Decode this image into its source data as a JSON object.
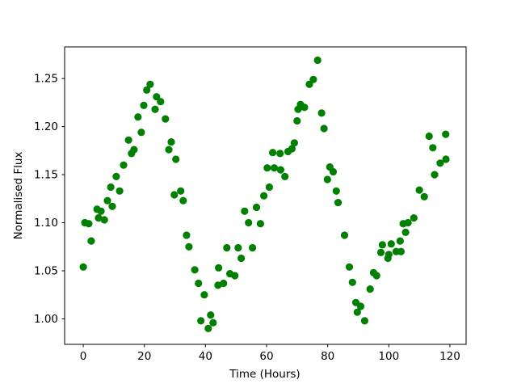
{
  "figure": {
    "background": "#ffffff",
    "frame_color": "#000000"
  },
  "chart_data": {
    "type": "scatter",
    "title": "",
    "xlabel": "Time (Hours)",
    "ylabel": "Normalised Flux",
    "legend": null,
    "grid": false,
    "marker": {
      "shape": "circle",
      "color": "#008000",
      "radius_px": 4.6
    },
    "xlim": [
      -6.1,
      125.3
    ],
    "ylim": [
      0.9735,
      1.2829
    ],
    "x_ticks": [
      {
        "value": 0,
        "label": "0"
      },
      {
        "value": 20,
        "label": "20"
      },
      {
        "value": 40,
        "label": "40"
      },
      {
        "value": 60,
        "label": "60"
      },
      {
        "value": 80,
        "label": "80"
      },
      {
        "value": 100,
        "label": "100"
      },
      {
        "value": 120,
        "label": "120"
      }
    ],
    "y_ticks": [
      {
        "value": 1.0,
        "label": "1.00"
      },
      {
        "value": 1.05,
        "label": "1.05"
      },
      {
        "value": 1.1,
        "label": "1.10"
      },
      {
        "value": 1.15,
        "label": "1.15"
      },
      {
        "value": 1.2,
        "label": "1.20"
      },
      {
        "value": 1.25,
        "label": "1.25"
      }
    ],
    "points": [
      [
        0.0,
        1.054
      ],
      [
        0.5,
        1.1
      ],
      [
        1.8,
        1.099
      ],
      [
        2.6,
        1.081
      ],
      [
        4.5,
        1.114
      ],
      [
        5.0,
        1.105
      ],
      [
        5.8,
        1.112
      ],
      [
        6.9,
        1.103
      ],
      [
        7.9,
        1.123
      ],
      [
        9.0,
        1.137
      ],
      [
        9.5,
        1.117
      ],
      [
        10.8,
        1.148
      ],
      [
        11.9,
        1.133
      ],
      [
        13.2,
        1.16
      ],
      [
        14.8,
        1.186
      ],
      [
        15.8,
        1.172
      ],
      [
        16.6,
        1.176
      ],
      [
        17.9,
        1.21
      ],
      [
        19.0,
        1.194
      ],
      [
        19.8,
        1.222
      ],
      [
        20.8,
        1.238
      ],
      [
        21.9,
        1.244
      ],
      [
        23.5,
        1.218
      ],
      [
        24.0,
        1.231
      ],
      [
        25.3,
        1.226
      ],
      [
        26.9,
        1.208
      ],
      [
        28.0,
        1.176
      ],
      [
        28.8,
        1.184
      ],
      [
        29.8,
        1.129
      ],
      [
        30.3,
        1.166
      ],
      [
        31.9,
        1.133
      ],
      [
        32.7,
        1.123
      ],
      [
        33.8,
        1.087
      ],
      [
        34.6,
        1.075
      ],
      [
        36.5,
        1.051
      ],
      [
        37.7,
        1.037
      ],
      [
        38.5,
        0.998
      ],
      [
        39.6,
        1.025
      ],
      [
        40.9,
        0.99
      ],
      [
        41.7,
        1.004
      ],
      [
        42.5,
        0.996
      ],
      [
        44.1,
        1.035
      ],
      [
        44.3,
        1.053
      ],
      [
        45.9,
        1.037
      ],
      [
        47.0,
        1.074
      ],
      [
        48.0,
        1.047
      ],
      [
        49.6,
        1.045
      ],
      [
        50.7,
        1.074
      ],
      [
        51.7,
        1.063
      ],
      [
        52.8,
        1.112
      ],
      [
        54.1,
        1.1
      ],
      [
        55.4,
        1.074
      ],
      [
        56.7,
        1.116
      ],
      [
        58.0,
        1.099
      ],
      [
        59.1,
        1.128
      ],
      [
        60.2,
        1.157
      ],
      [
        60.9,
        1.137
      ],
      [
        62.0,
        1.173
      ],
      [
        62.5,
        1.157
      ],
      [
        64.4,
        1.172
      ],
      [
        64.6,
        1.155
      ],
      [
        66.0,
        1.148
      ],
      [
        67.0,
        1.174
      ],
      [
        68.3,
        1.177
      ],
      [
        69.1,
        1.183
      ],
      [
        70.0,
        1.206
      ],
      [
        70.3,
        1.218
      ],
      [
        71.1,
        1.223
      ],
      [
        72.4,
        1.22
      ],
      [
        74.0,
        1.244
      ],
      [
        75.3,
        1.249
      ],
      [
        76.7,
        1.269
      ],
      [
        78.0,
        1.214
      ],
      [
        78.8,
        1.198
      ],
      [
        79.9,
        1.145
      ],
      [
        80.7,
        1.158
      ],
      [
        81.8,
        1.153
      ],
      [
        82.8,
        1.133
      ],
      [
        83.4,
        1.121
      ],
      [
        85.5,
        1.087
      ],
      [
        87.1,
        1.054
      ],
      [
        88.1,
        1.038
      ],
      [
        89.2,
        1.017
      ],
      [
        89.7,
        1.007
      ],
      [
        90.8,
        1.013
      ],
      [
        92.1,
        0.998
      ],
      [
        93.9,
        1.031
      ],
      [
        95.0,
        1.048
      ],
      [
        96.0,
        1.045
      ],
      [
        97.4,
        1.069
      ],
      [
        97.9,
        1.077
      ],
      [
        99.7,
        1.063
      ],
      [
        100.0,
        1.067
      ],
      [
        100.8,
        1.078
      ],
      [
        102.4,
        1.07
      ],
      [
        103.7,
        1.081
      ],
      [
        104.0,
        1.07
      ],
      [
        104.7,
        1.099
      ],
      [
        105.5,
        1.09
      ],
      [
        106.3,
        1.1
      ],
      [
        108.2,
        1.105
      ],
      [
        110.0,
        1.134
      ],
      [
        111.6,
        1.127
      ],
      [
        113.2,
        1.19
      ],
      [
        114.4,
        1.178
      ],
      [
        115.0,
        1.15
      ],
      [
        116.8,
        1.162
      ],
      [
        118.6,
        1.192
      ],
      [
        118.7,
        1.166
      ]
    ]
  }
}
